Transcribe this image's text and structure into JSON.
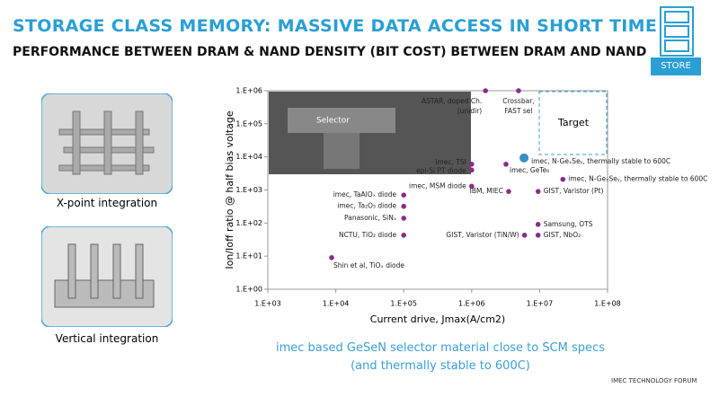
{
  "slide": {
    "title": "STORAGE CLASS MEMORY: MASSIVE DATA ACCESS IN SHORT TIME",
    "subtitle": "PERFORMANCE BETWEEN DRAM & NAND  DENSITY (BIT COST) BETWEEN DRAM AND NAND",
    "store": "STORE",
    "image1_caption": "X-point integration",
    "image2_caption": "Vertical integration",
    "inset_label": "Selector",
    "target_label": "Target",
    "conclusion": [
      "imec based GeSeN selector material close to SCM specs",
      "(and thermally stable to 600C)"
    ],
    "footer": "IMEC TECHNOLOGY FORUM"
  },
  "chart_data": {
    "type": "scatter",
    "xlabel": "Current drive, Jmax(A/cm2)",
    "ylabel": "Ion/Ioff ratio @ half bias voltage",
    "log_x": true,
    "log_y": true,
    "grid": false,
    "xlim": [
      1000,
      100000000
    ],
    "ylim": [
      1,
      1000000
    ],
    "xticks": [
      {
        "value": 1000,
        "label": "1.E+03"
      },
      {
        "value": 10000,
        "label": "1.E+04"
      },
      {
        "value": 100000,
        "label": "1.E+05"
      },
      {
        "value": 1000000,
        "label": "1.E+06"
      },
      {
        "value": 10000000,
        "label": "1.E+07"
      },
      {
        "value": 100000000,
        "label": "1.E+08"
      }
    ],
    "yticks": [
      {
        "value": 1,
        "label": "1.E+00"
      },
      {
        "value": 10,
        "label": "1.E+01"
      },
      {
        "value": 100,
        "label": "1.E+02"
      },
      {
        "value": 1000,
        "label": "1.E+03"
      },
      {
        "value": 10000,
        "label": "1.E+04"
      },
      {
        "value": 100000,
        "label": "1.E+05"
      },
      {
        "value": 1000000,
        "label": "1.E+06"
      }
    ],
    "series": [
      {
        "x": [
          1600000,
          4900000,
          1000000,
          1000000,
          3200000,
          5900000,
          1000000,
          3500000,
          9500000,
          22000000,
          100000,
          100000,
          100000,
          100000,
          9500000,
          9500000,
          6000000,
          8700
        ],
        "values": [
          1000000,
          1000000,
          6000,
          4000,
          6000,
          9300,
          1300,
          900,
          900,
          2100,
          700,
          320,
          140,
          43,
          91,
          43,
          43,
          9
        ],
        "labels": [
          [
            "ASTAR, doped Ch.",
            "(unidir)"
          ],
          [
            "Crossbar,",
            "FAST sel"
          ],
          [
            "imec, TSI"
          ],
          [
            "epi-Si PT diode"
          ],
          [
            "imec, GeTe₆"
          ],
          [
            "imec, N-GeₓSeᵧ, thermally stable to 600C"
          ],
          [
            "imec, MSM diode"
          ],
          [
            "IBM, MIEC"
          ],
          [
            "GIST, Varistor (Pt)"
          ],
          [
            "imec, N-GeₓSeᵧ, thermally stable to 600C"
          ],
          [
            "imec, TaAlOₓ diode"
          ],
          [
            "imec, Ta₂O₅ diode"
          ],
          [
            "Panasonic, SiNₓ"
          ],
          [
            "NCTU, TiO₂ diode"
          ],
          [
            "Samsung, OTS"
          ],
          [
            "GIST, NbO₂"
          ],
          [
            "GIST, Varistor (TiN/W)"
          ],
          [
            "Shin et al, TiOₓ diode"
          ]
        ],
        "colors": [
          "#8a2b8c",
          "#8a2b8c",
          "#8a2b8c",
          "#8a2b8c",
          "#8a2b8c",
          "#3b8fc6",
          "#8a2b8c",
          "#8a2b8c",
          "#8a2b8c",
          "#8a2b8c",
          "#8a2b8c",
          "#8a2b8c",
          "#8a2b8c",
          "#8a2b8c",
          "#8a2b8c",
          "#8a2b8c",
          "#8a2b8c",
          "#8a2b8c"
        ]
      }
    ]
  }
}
